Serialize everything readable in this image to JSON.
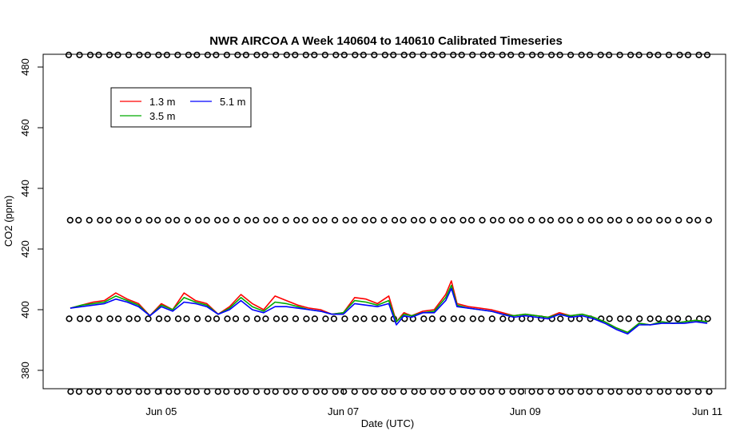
{
  "chart_data": {
    "type": "line",
    "title": "NWR AIRCOA A  Week 140604 to 140610  Calibrated Timeseries",
    "xlabel": "Date (UTC)",
    "ylabel": "CO2 (ppm)",
    "xlim": [
      "2014-06-04T00:00",
      "2014-06-11T00:00"
    ],
    "ylim": [
      368,
      488
    ],
    "x_ticks": [
      {
        "label": "Jun 05",
        "x": "2014-06-05T00:00"
      },
      {
        "label": "Jun 07",
        "x": "2014-06-07T00:00"
      },
      {
        "label": "Jun 09",
        "x": "2014-06-09T00:00"
      },
      {
        "label": "Jun 11",
        "x": "2014-06-11T00:00"
      }
    ],
    "y_ticks": [
      380,
      400,
      420,
      440,
      460,
      480
    ],
    "grid": false,
    "legend": {
      "placement": "top-left",
      "entries": [
        {
          "label": "1.3 m",
          "color": "#ff0000"
        },
        {
          "label": "5.1 m",
          "color": "#0000ff"
        },
        {
          "label": "3.5 m",
          "color": "#00aa00"
        }
      ]
    },
    "series": [
      {
        "name": "1.3 m",
        "color": "#ff0000",
        "points": [
          [
            "2014-06-04T00:00",
            400.5
          ],
          [
            "2014-06-04T03:00",
            401.5
          ],
          [
            "2014-06-04T06:00",
            402.5
          ],
          [
            "2014-06-04T09:00",
            403
          ],
          [
            "2014-06-04T12:00",
            405.5
          ],
          [
            "2014-06-04T15:00",
            403.5
          ],
          [
            "2014-06-04T18:00",
            402
          ],
          [
            "2014-06-04T21:00",
            398
          ],
          [
            "2014-06-05T00:00",
            402
          ],
          [
            "2014-06-05T03:00",
            400
          ],
          [
            "2014-06-05T06:00",
            405.5
          ],
          [
            "2014-06-05T09:00",
            403
          ],
          [
            "2014-06-05T12:00",
            402
          ],
          [
            "2014-06-05T15:00",
            398.5
          ],
          [
            "2014-06-05T18:00",
            401
          ],
          [
            "2014-06-05T21:00",
            405
          ],
          [
            "2014-06-06T00:00",
            402
          ],
          [
            "2014-06-06T03:00",
            400
          ],
          [
            "2014-06-06T06:00",
            404.5
          ],
          [
            "2014-06-06T09:00",
            403
          ],
          [
            "2014-06-06T12:00",
            401.5
          ],
          [
            "2014-06-06T15:00",
            400.5
          ],
          [
            "2014-06-06T18:00",
            400
          ],
          [
            "2014-06-06T21:00",
            398.5
          ],
          [
            "2014-06-07T00:00",
            399
          ],
          [
            "2014-06-07T03:00",
            404
          ],
          [
            "2014-06-07T06:00",
            403.5
          ],
          [
            "2014-06-07T09:00",
            402
          ],
          [
            "2014-06-07T12:00",
            404.5
          ],
          [
            "2014-06-07T14:00",
            396
          ],
          [
            "2014-06-07T16:00",
            399
          ],
          [
            "2014-06-07T18:00",
            398
          ],
          [
            "2014-06-07T21:00",
            399.5
          ],
          [
            "2014-06-08T00:00",
            400
          ],
          [
            "2014-06-08T03:00",
            405
          ],
          [
            "2014-06-08T04:30",
            409.5
          ],
          [
            "2014-06-08T06:00",
            402
          ],
          [
            "2014-06-08T09:00",
            401
          ],
          [
            "2014-06-08T12:00",
            400.5
          ],
          [
            "2014-06-08T15:00",
            400
          ],
          [
            "2014-06-08T18:00",
            399
          ],
          [
            "2014-06-08T21:00",
            398
          ],
          [
            "2014-06-09T00:00",
            398.5
          ],
          [
            "2014-06-09T03:00",
            398
          ],
          [
            "2014-06-09T06:00",
            397.5
          ],
          [
            "2014-06-09T09:00",
            399
          ],
          [
            "2014-06-09T12:00",
            398
          ],
          [
            "2014-06-09T15:00",
            398.5
          ],
          [
            "2014-06-09T18:00",
            397.5
          ],
          [
            "2014-06-09T21:00",
            396
          ],
          [
            "2014-06-10T00:00",
            394
          ],
          [
            "2014-06-10T03:00",
            392.5
          ],
          [
            "2014-06-10T06:00",
            395.5
          ],
          [
            "2014-06-10T09:00",
            395
          ],
          [
            "2014-06-10T12:00",
            396
          ],
          [
            "2014-06-10T15:00",
            395.5
          ],
          [
            "2014-06-10T18:00",
            396
          ],
          [
            "2014-06-10T21:00",
            396.5
          ],
          [
            "2014-06-11T00:00",
            396
          ]
        ]
      },
      {
        "name": "3.5 m",
        "color": "#00aa00",
        "points": [
          [
            "2014-06-04T00:00",
            400.5
          ],
          [
            "2014-06-04T03:00",
            401.5
          ],
          [
            "2014-06-04T06:00",
            402
          ],
          [
            "2014-06-04T09:00",
            402.5
          ],
          [
            "2014-06-04T12:00",
            404.5
          ],
          [
            "2014-06-04T15:00",
            403
          ],
          [
            "2014-06-04T18:00",
            401.5
          ],
          [
            "2014-06-04T21:00",
            398
          ],
          [
            "2014-06-05T00:00",
            401.5
          ],
          [
            "2014-06-05T03:00",
            400
          ],
          [
            "2014-06-05T06:00",
            404
          ],
          [
            "2014-06-05T09:00",
            402.5
          ],
          [
            "2014-06-05T12:00",
            401.5
          ],
          [
            "2014-06-05T15:00",
            398.5
          ],
          [
            "2014-06-05T18:00",
            400.5
          ],
          [
            "2014-06-05T21:00",
            404
          ],
          [
            "2014-06-06T00:00",
            401
          ],
          [
            "2014-06-06T03:00",
            399.5
          ],
          [
            "2014-06-06T06:00",
            402.5
          ],
          [
            "2014-06-06T09:00",
            402
          ],
          [
            "2014-06-06T12:00",
            401
          ],
          [
            "2014-06-06T15:00",
            400
          ],
          [
            "2014-06-06T18:00",
            399.5
          ],
          [
            "2014-06-06T21:00",
            398.5
          ],
          [
            "2014-06-07T00:00",
            399
          ],
          [
            "2014-06-07T03:00",
            403
          ],
          [
            "2014-06-07T06:00",
            402.5
          ],
          [
            "2014-06-07T09:00",
            401.5
          ],
          [
            "2014-06-07T12:00",
            403
          ],
          [
            "2014-06-07T14:00",
            396
          ],
          [
            "2014-06-07T16:00",
            398.5
          ],
          [
            "2014-06-07T18:00",
            398
          ],
          [
            "2014-06-07T21:00",
            399
          ],
          [
            "2014-06-08T00:00",
            399.5
          ],
          [
            "2014-06-08T03:00",
            404
          ],
          [
            "2014-06-08T04:30",
            408
          ],
          [
            "2014-06-08T06:00",
            401.5
          ],
          [
            "2014-06-08T09:00",
            400.5
          ],
          [
            "2014-06-08T12:00",
            400
          ],
          [
            "2014-06-08T15:00",
            399.5
          ],
          [
            "2014-06-08T18:00",
            398.5
          ],
          [
            "2014-06-08T21:00",
            398
          ],
          [
            "2014-06-09T00:00",
            398.5
          ],
          [
            "2014-06-09T03:00",
            398
          ],
          [
            "2014-06-09T06:00",
            397.5
          ],
          [
            "2014-06-09T09:00",
            398.5
          ],
          [
            "2014-06-09T12:00",
            398
          ],
          [
            "2014-06-09T15:00",
            398.5
          ],
          [
            "2014-06-09T18:00",
            397.5
          ],
          [
            "2014-06-09T21:00",
            396
          ],
          [
            "2014-06-10T00:00",
            394
          ],
          [
            "2014-06-10T03:00",
            392.5
          ],
          [
            "2014-06-10T06:00",
            395.5
          ],
          [
            "2014-06-10T09:00",
            395
          ],
          [
            "2014-06-10T12:00",
            396
          ],
          [
            "2014-06-10T15:00",
            395.5
          ],
          [
            "2014-06-10T18:00",
            396
          ],
          [
            "2014-06-10T21:00",
            396.5
          ],
          [
            "2014-06-11T00:00",
            396
          ]
        ]
      },
      {
        "name": "5.1 m",
        "color": "#0000ff",
        "points": [
          [
            "2014-06-04T00:00",
            400.5
          ],
          [
            "2014-06-04T03:00",
            401
          ],
          [
            "2014-06-04T06:00",
            401.5
          ],
          [
            "2014-06-04T09:00",
            402
          ],
          [
            "2014-06-04T12:00",
            403.5
          ],
          [
            "2014-06-04T15:00",
            402.5
          ],
          [
            "2014-06-04T18:00",
            401
          ],
          [
            "2014-06-04T21:00",
            398
          ],
          [
            "2014-06-05T00:00",
            401
          ],
          [
            "2014-06-05T03:00",
            399.5
          ],
          [
            "2014-06-05T06:00",
            402.5
          ],
          [
            "2014-06-05T09:00",
            402
          ],
          [
            "2014-06-05T12:00",
            401
          ],
          [
            "2014-06-05T15:00",
            398.5
          ],
          [
            "2014-06-05T18:00",
            400
          ],
          [
            "2014-06-05T21:00",
            403
          ],
          [
            "2014-06-06T00:00",
            400
          ],
          [
            "2014-06-06T03:00",
            399
          ],
          [
            "2014-06-06T06:00",
            401
          ],
          [
            "2014-06-06T09:00",
            401
          ],
          [
            "2014-06-06T12:00",
            400.5
          ],
          [
            "2014-06-06T15:00",
            400
          ],
          [
            "2014-06-06T18:00",
            399.5
          ],
          [
            "2014-06-06T21:00",
            398.5
          ],
          [
            "2014-06-07T00:00",
            398.5
          ],
          [
            "2014-06-07T03:00",
            402
          ],
          [
            "2014-06-07T06:00",
            401.5
          ],
          [
            "2014-06-07T09:00",
            401
          ],
          [
            "2014-06-07T12:00",
            402
          ],
          [
            "2014-06-07T14:00",
            395
          ],
          [
            "2014-06-07T16:00",
            398
          ],
          [
            "2014-06-07T18:00",
            397.5
          ],
          [
            "2014-06-07T21:00",
            399
          ],
          [
            "2014-06-08T00:00",
            399
          ],
          [
            "2014-06-08T03:00",
            403
          ],
          [
            "2014-06-08T04:30",
            407
          ],
          [
            "2014-06-08T06:00",
            401
          ],
          [
            "2014-06-08T09:00",
            400.5
          ],
          [
            "2014-06-08T12:00",
            400
          ],
          [
            "2014-06-08T15:00",
            399.5
          ],
          [
            "2014-06-08T18:00",
            398.5
          ],
          [
            "2014-06-08T21:00",
            397.5
          ],
          [
            "2014-06-09T00:00",
            398
          ],
          [
            "2014-06-09T03:00",
            397.5
          ],
          [
            "2014-06-09T06:00",
            397
          ],
          [
            "2014-06-09T09:00",
            398.5
          ],
          [
            "2014-06-09T12:00",
            397.5
          ],
          [
            "2014-06-09T15:00",
            398
          ],
          [
            "2014-06-09T18:00",
            397
          ],
          [
            "2014-06-09T21:00",
            395.5
          ],
          [
            "2014-06-10T00:00",
            393.5
          ],
          [
            "2014-06-10T03:00",
            392
          ],
          [
            "2014-06-10T06:00",
            395
          ],
          [
            "2014-06-10T09:00",
            395
          ],
          [
            "2014-06-10T12:00",
            395.5
          ],
          [
            "2014-06-10T15:00",
            395.5
          ],
          [
            "2014-06-10T18:00",
            395.5
          ],
          [
            "2014-06-10T21:00",
            396
          ],
          [
            "2014-06-11T00:00",
            395.5
          ]
        ]
      }
    ],
    "calibration_markers": {
      "marker": "open-circle",
      "color": "#000000",
      "levels_ppm": [
        484,
        429.5,
        397,
        373
      ]
    }
  }
}
